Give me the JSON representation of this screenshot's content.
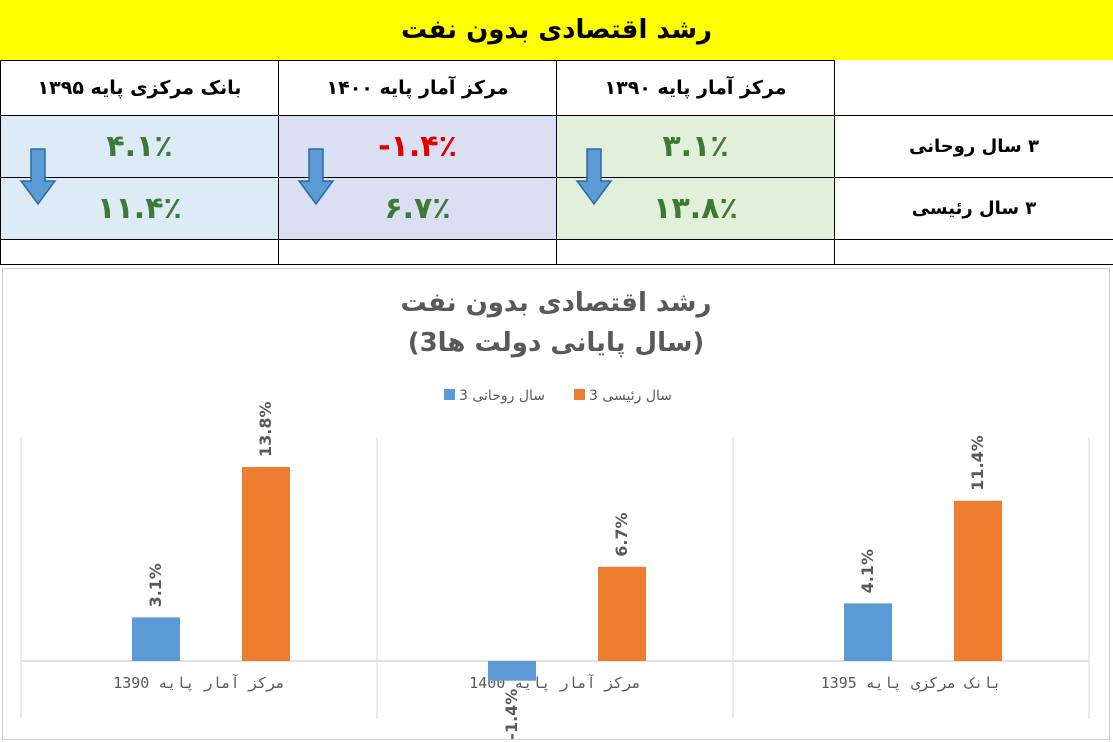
{
  "banner_title": "رشد اقتصادی بدون نفت",
  "table": {
    "headers": [
      "بانک مرکزی پایه ۱۳۹۵",
      "مرکز آمار پایه ۱۴۰۰",
      "مرکز آمار پایه ۱۳۹۰"
    ],
    "rows": [
      {
        "label": "۳ سال روحانی",
        "values": [
          "۴.۱٪",
          "-۱.۴٪",
          "۳.۱٪"
        ]
      },
      {
        "label": "۳ سال رئیسی",
        "values": [
          "۱۱.۴٪",
          "۶.۷٪",
          "۱۳.۸٪"
        ]
      }
    ],
    "colors": {
      "positive": "#3d7a36",
      "negative": "#e00000",
      "arrow": "#5b9bd5"
    }
  },
  "chart_data": {
    "type": "bar",
    "title_line1": "رشد اقتصادی بدون نفت",
    "title_line2": "(3سال پایانی دولت ها)",
    "categories": [
      "مرکز آمار پایه 1390",
      "مرکز آمار پایه 1400",
      "بانک مرکزی پایه 1395"
    ],
    "series": [
      {
        "name": "3 سال روحانی",
        "color": "#5b9bd5",
        "values": [
          3.1,
          -1.4,
          4.1
        ],
        "labels": [
          "3.1%",
          "-1.4%",
          "4.1%"
        ]
      },
      {
        "name": "3 سال رئیسی",
        "color": "#ed7d31",
        "values": [
          13.8,
          6.7,
          11.4
        ],
        "labels": [
          "13.8%",
          "6.7%",
          "11.4%"
        ]
      }
    ],
    "ylim": [
      -2.5,
      18
    ],
    "grid": false,
    "legend": "top-center"
  }
}
